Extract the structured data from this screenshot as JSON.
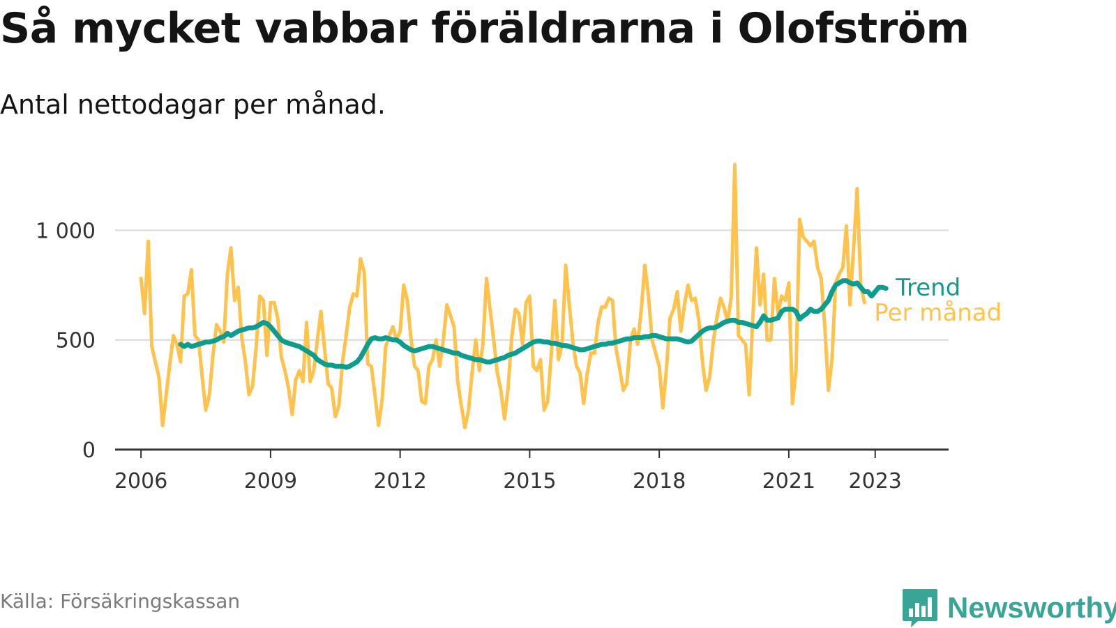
{
  "title": "Så mycket vabbar föräldrarna i Olofström",
  "subtitle": "Antal nettodagar per månad.",
  "source": "Källa: Försäkringskassan",
  "brand": {
    "name": "Newsworthy",
    "color": "#3aa497",
    "icon": "bar-chart-bubble-icon"
  },
  "colors": {
    "monthly": "#ffc34d",
    "trend": "#0e9c8e",
    "grid": "#d9d9d9",
    "axis": "#333333"
  },
  "chart_data": {
    "type": "line",
    "title": "Så mycket vabbar föräldrarna i Olofström",
    "subtitle": "Antal nettodagar per månad.",
    "xlabel": "",
    "ylabel": "",
    "xlim": [
      2005.4,
      2024.7
    ],
    "ylim": [
      0,
      1300
    ],
    "grid": true,
    "x_ticks": [
      {
        "value": 2006,
        "label": "2006"
      },
      {
        "value": 2009,
        "label": "2009"
      },
      {
        "value": 2012,
        "label": "2012"
      },
      {
        "value": 2015,
        "label": "2015"
      },
      {
        "value": 2018,
        "label": "2018"
      },
      {
        "value": 2021,
        "label": "2021"
      },
      {
        "value": 2023,
        "label": "2023"
      }
    ],
    "y_ticks": [
      {
        "value": 0,
        "label": "0"
      },
      {
        "value": 500,
        "label": "500"
      },
      {
        "value": 1000,
        "label": "1 000"
      }
    ],
    "x_start": 2006.0,
    "x_step_months": 1,
    "series": [
      {
        "name": "Per månad",
        "color": "#ffc34d",
        "values": [
          780,
          620,
          950,
          470,
          400,
          330,
          110,
          250,
          390,
          520,
          480,
          400,
          700,
          710,
          820,
          520,
          500,
          330,
          180,
          250,
          430,
          570,
          540,
          490,
          800,
          920,
          680,
          740,
          510,
          400,
          250,
          290,
          470,
          700,
          680,
          430,
          670,
          670,
          600,
          420,
          360,
          280,
          160,
          320,
          360,
          310,
          580,
          310,
          360,
          500,
          630,
          460,
          300,
          280,
          150,
          200,
          400,
          520,
          650,
          710,
          700,
          870,
          810,
          390,
          380,
          250,
          110,
          230,
          470,
          520,
          560,
          500,
          540,
          750,
          680,
          510,
          380,
          360,
          220,
          210,
          380,
          410,
          500,
          380,
          500,
          660,
          610,
          560,
          310,
          200,
          100,
          180,
          350,
          500,
          360,
          480,
          780,
          640,
          500,
          350,
          270,
          140,
          280,
          510,
          640,
          620,
          480,
          670,
          700,
          380,
          360,
          410,
          180,
          220,
          440,
          680,
          410,
          480,
          840,
          660,
          490,
          380,
          350,
          210,
          350,
          440,
          440,
          580,
          650,
          650,
          690,
          680,
          460,
          370,
          270,
          300,
          500,
          550,
          480,
          640,
          840,
          700,
          500,
          440,
          380,
          190,
          370,
          600,
          640,
          720,
          540,
          660,
          750,
          680,
          690,
          590,
          400,
          270,
          330,
          490,
          600,
          690,
          650,
          580,
          700,
          1300,
          520,
          500,
          480,
          250,
          600,
          920,
          660,
          800,
          500,
          500,
          780,
          620,
          700,
          680,
          760,
          210,
          360,
          1050,
          970,
          950,
          930,
          950,
          830,
          780,
          560,
          270,
          410,
          760,
          800,
          830,
          1020,
          660,
          920,
          1190,
          750,
          670
        ]
      },
      {
        "name": "Trend",
        "color": "#0e9c8e",
        "x_start": 2006.917,
        "values": [
          480,
          470,
          480,
          470,
          475,
          480,
          485,
          490,
          490,
          495,
          500,
          510,
          515,
          530,
          520,
          530,
          540,
          545,
          550,
          555,
          555,
          560,
          570,
          580,
          575,
          560,
          540,
          520,
          500,
          490,
          485,
          480,
          475,
          470,
          460,
          450,
          440,
          430,
          410,
          400,
          390,
          385,
          385,
          380,
          380,
          380,
          375,
          380,
          390,
          400,
          420,
          450,
          480,
          505,
          510,
          505,
          505,
          510,
          505,
          500,
          500,
          490,
          475,
          465,
          455,
          450,
          455,
          460,
          465,
          470,
          470,
          465,
          460,
          455,
          450,
          445,
          440,
          440,
          430,
          425,
          420,
          415,
          410,
          410,
          405,
          400,
          400,
          405,
          410,
          415,
          420,
          430,
          435,
          440,
          450,
          460,
          470,
          480,
          490,
          495,
          495,
          490,
          490,
          485,
          485,
          480,
          475,
          475,
          470,
          465,
          460,
          455,
          455,
          460,
          465,
          470,
          475,
          480,
          480,
          485,
          485,
          490,
          495,
          500,
          505,
          505,
          510,
          510,
          510,
          515,
          515,
          520,
          520,
          515,
          510,
          505,
          505,
          505,
          505,
          500,
          495,
          490,
          495,
          510,
          525,
          540,
          550,
          555,
          555,
          560,
          570,
          580,
          585,
          590,
          590,
          580,
          580,
          575,
          570,
          565,
          560,
          580,
          610,
          590,
          590,
          595,
          600,
          630,
          640,
          640,
          640,
          630,
          595,
          610,
          620,
          640,
          630,
          630,
          640,
          660,
          680,
          720,
          750,
          760,
          770,
          770,
          760,
          755,
          760,
          740,
          720,
          720,
          700,
          720,
          740,
          740,
          735
        ]
      }
    ],
    "series_labels": [
      {
        "name": "Trend",
        "text": "Trend",
        "color": "#0e9c8e"
      },
      {
        "name": "Per månad",
        "text": "Per månad",
        "color": "#ffc34d"
      }
    ]
  }
}
